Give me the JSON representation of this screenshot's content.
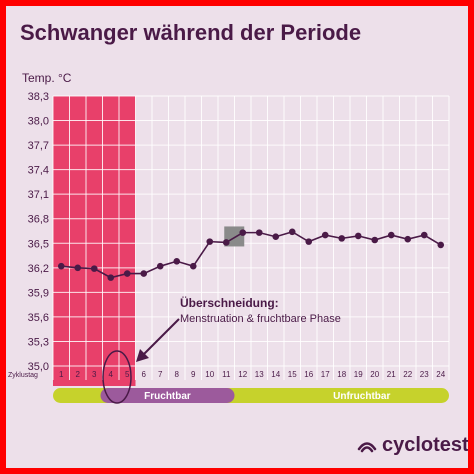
{
  "title": "Schwanger während der Periode",
  "colors": {
    "menstruation": "#e8406a",
    "line": "#4a1a47",
    "grid": "#ffffff",
    "fruchtbar": "#9c5a9c",
    "unfruchtbar": "#c6d22c",
    "marker": "#8a8a8a",
    "text": "#4a1a47"
  },
  "annotation": {
    "heading": "Überschneidung:",
    "text": "Menstruation & fruchtbare Phase"
  },
  "phases": {
    "fruchtbar": "Fruchtbar",
    "unfruchtbar": "Unfruchtbar"
  },
  "logo": {
    "text": "cyclotest",
    "icon": "cyclotest-logo-icon"
  },
  "chart_data": {
    "type": "line",
    "ylabel": "Temp. °C",
    "xlabel": "Zyklustag",
    "ylim": [
      35.0,
      38.3
    ],
    "yticks": [
      "38,3",
      "38,0",
      "37,7",
      "37,4",
      "37,1",
      "36,8",
      "36,5",
      "36,2",
      "35,9",
      "35,6",
      "35,3",
      "35,0"
    ],
    "x": [
      1,
      2,
      3,
      4,
      5,
      6,
      7,
      8,
      9,
      10,
      11,
      12,
      13,
      14,
      15,
      16,
      17,
      18,
      19,
      20,
      21,
      22,
      23,
      24
    ],
    "series": [
      {
        "values": [
          36.22,
          36.2,
          36.19,
          36.08,
          36.13,
          36.13,
          36.22,
          36.28,
          36.22,
          36.52,
          36.51,
          36.63,
          36.63,
          36.58,
          36.64,
          36.52,
          36.6,
          36.56,
          36.59,
          36.54,
          36.6,
          36.55,
          36.6,
          36.48
        ]
      }
    ],
    "menstruation_days": [
      1,
      5
    ],
    "fruchtbar_days": [
      4,
      11
    ],
    "unfruchtbar_days": [
      12,
      24
    ],
    "highlighted_day": 11,
    "grid": true
  }
}
